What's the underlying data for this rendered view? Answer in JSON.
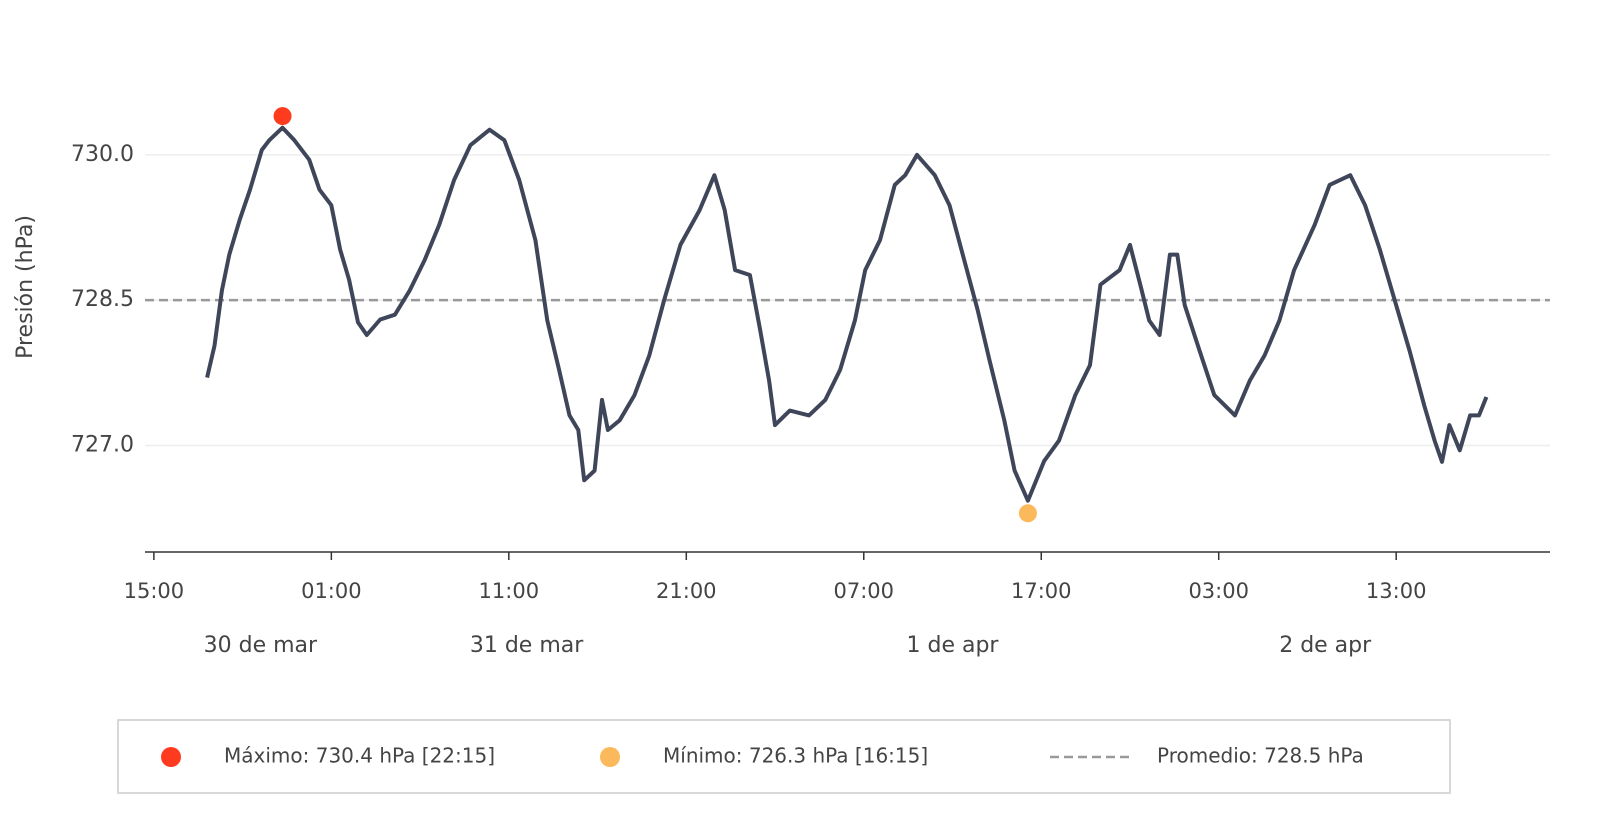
{
  "chart_data": {
    "type": "line",
    "y_label": "Presión (hPa)",
    "x": [
      "30 de mar 18:00",
      "30 de mar 18:25",
      "30 de mar 18:50",
      "30 de mar 19:15",
      "30 de mar 19:50",
      "30 de mar 20:25",
      "30 de mar 21:05",
      "30 de mar 21:30",
      "30 de mar 22:15",
      "30 de mar 22:55",
      "30 de mar 23:45",
      "31 de mar 00:20",
      "31 de mar 01:00",
      "31 de mar 01:30",
      "31 de mar 02:00",
      "31 de mar 02:30",
      "31 de mar 03:00",
      "31 de mar 03:45",
      "31 de mar 04:35",
      "31 de mar 05:25",
      "31 de mar 06:15",
      "31 de mar 07:05",
      "31 de mar 07:55",
      "31 de mar 08:50",
      "31 de mar 09:55",
      "31 de mar 10:45",
      "31 de mar 11:35",
      "31 de mar 12:30",
      "31 de mar 13:10",
      "31 de mar 13:50",
      "31 de mar 14:25",
      "31 de mar 14:55",
      "31 de mar 15:15",
      "31 de mar 15:50",
      "31 de mar 16:15",
      "31 de mar 16:35",
      "31 de mar 17:15",
      "31 de mar 18:05",
      "31 de mar 18:55",
      "31 de mar 19:45",
      "31 de mar 20:40",
      "31 de mar 21:45",
      "31 de mar 22:35",
      "31 de mar 23:10",
      "31 de mar 23:45",
      "1 de apr 00:35",
      "1 de apr 01:10",
      "1 de apr 01:40",
      "1 de apr 02:00",
      "1 de apr 02:50",
      "1 de apr 03:55",
      "1 de apr 04:50",
      "1 de apr 05:40",
      "1 de apr 06:30",
      "1 de apr 07:05",
      "1 de apr 07:55",
      "1 de apr 08:45",
      "1 de apr 09:20",
      "1 de apr 10:00",
      "1 de apr 11:00",
      "1 de apr 11:50",
      "1 de apr 12:40",
      "1 de apr 13:25",
      "1 de apr 14:05",
      "1 de apr 14:55",
      "1 de apr 15:30",
      "1 de apr 16:15",
      "1 de apr 17:10",
      "1 de apr 18:00",
      "1 de apr 18:55",
      "1 de apr 19:45",
      "1 de apr 20:20",
      "1 de apr 21:25",
      "1 de apr 22:00",
      "1 de apr 22:35",
      "1 de apr 23:05",
      "1 de apr 23:40",
      "2 de apr 00:15",
      "2 de apr 00:40",
      "2 de apr 01:05",
      "2 de apr 01:55",
      "2 de apr 02:45",
      "2 de apr 03:55",
      "2 de apr 04:45",
      "2 de apr 05:35",
      "2 de apr 06:25",
      "2 de apr 07:15",
      "2 de apr 08:25",
      "2 de apr 09:15",
      "2 de apr 10:25",
      "2 de apr 11:15",
      "2 de apr 12:05",
      "2 de apr 12:55",
      "2 de apr 13:45",
      "2 de apr 14:35",
      "2 de apr 15:10",
      "2 de apr 15:35",
      "2 de apr 16:00",
      "2 de apr 16:35",
      "2 de apr 17:10",
      "2 de apr 17:40",
      "2 de apr 18:05"
    ],
    "series": [
      {
        "color": "#3f4659",
        "values": [
          727.7,
          728.03,
          728.6,
          728.97,
          729.33,
          729.64,
          730.05,
          730.15,
          730.28,
          730.15,
          729.95,
          729.64,
          729.48,
          729.02,
          728.71,
          728.27,
          728.14,
          728.3,
          728.35,
          728.6,
          728.91,
          729.28,
          729.74,
          730.1,
          730.26,
          730.15,
          729.74,
          729.12,
          728.29,
          727.78,
          727.31,
          727.16,
          726.64,
          726.74,
          727.47,
          727.16,
          727.26,
          727.52,
          727.93,
          728.5,
          729.07,
          729.43,
          729.79,
          729.43,
          728.81,
          728.76,
          728.19,
          727.67,
          727.21,
          727.36,
          727.31,
          727.47,
          727.78,
          728.29,
          728.81,
          729.12,
          729.69,
          729.79,
          730.0,
          729.79,
          729.48,
          728.91,
          728.4,
          727.88,
          727.26,
          726.74,
          726.43,
          726.84,
          727.05,
          727.52,
          727.83,
          728.66,
          728.81,
          729.07,
          728.66,
          728.29,
          728.14,
          728.97,
          728.97,
          728.45,
          727.98,
          727.52,
          727.31,
          727.67,
          727.93,
          728.29,
          728.81,
          729.28,
          729.69,
          729.79,
          729.48,
          729.02,
          728.5,
          727.98,
          727.41,
          727.05,
          726.83,
          727.21,
          726.95,
          727.31,
          727.31,
          727.5
        ]
      }
    ],
    "markers": [
      {
        "name": "Máximo: 730.4 hPa   [22:15]",
        "x": "30 de mar 22:15",
        "value": 730.4,
        "color": "#ff3b1f"
      },
      {
        "name": "Mínimo: 726.3 hPa   [16:15]",
        "x": "1 de apr 16:15",
        "value": 726.3,
        "color": "#fbb95c"
      }
    ],
    "mean": {
      "name": "Promedio: 728.5 hPa",
      "value": 728.5,
      "color": "#999999"
    },
    "xlim": [
      "30 de mar 14:30",
      "2 de apr 21:40"
    ],
    "xticks": [
      {
        "value": "30 de mar 15:00",
        "label": "15:00"
      },
      {
        "value": "31 de mar 01:00",
        "label": "01:00"
      },
      {
        "value": "31 de mar 11:00",
        "label": "11:00"
      },
      {
        "value": "31 de mar 21:00",
        "label": "21:00"
      },
      {
        "value": "1 de apr 07:00",
        "label": "07:00"
      },
      {
        "value": "1 de apr 17:00",
        "label": "17:00"
      },
      {
        "value": "2 de apr 03:00",
        "label": "03:00"
      },
      {
        "value": "2 de apr 13:00",
        "label": "13:00"
      }
    ],
    "date_labels": [
      {
        "value": "30 de mar 21:00",
        "label": "30 de mar"
      },
      {
        "value": "31 de mar 12:00",
        "label": "31 de mar"
      },
      {
        "value": "1 de apr 12:00",
        "label": "1 de apr"
      },
      {
        "value": "2 de apr 09:00",
        "label": "2 de apr"
      }
    ],
    "ylim": [
      725.9,
      731.0
    ],
    "yticks": [
      {
        "value": 727.0,
        "label": "727.0"
      },
      728.5,
      {
        "value": 730.0,
        "label": "730.0"
      }
    ],
    "grid": true
  }
}
